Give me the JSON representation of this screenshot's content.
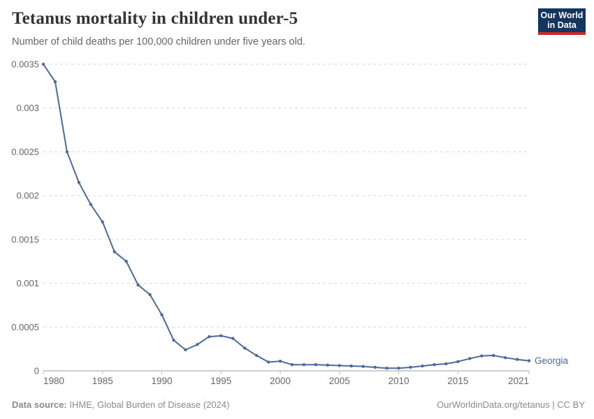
{
  "header": {
    "title": "Tetanus mortality in children under-5",
    "subtitle": "Number of child deaths per 100,000 children under five years old."
  },
  "logo": {
    "line1": "Our World",
    "line2": "in Data",
    "bg_color": "#14355E",
    "bar_color": "#CB2B24",
    "text_color": "#FFFFFF"
  },
  "chart_data": {
    "type": "line",
    "title": "Tetanus mortality in children under-5",
    "subtitle": "Number of child deaths per 100,000 children under five years old.",
    "xlabel": "",
    "ylabel": "",
    "x": [
      1980,
      1981,
      1982,
      1983,
      1984,
      1985,
      1986,
      1987,
      1988,
      1989,
      1990,
      1991,
      1992,
      1993,
      1994,
      1995,
      1996,
      1997,
      1998,
      1999,
      2000,
      2001,
      2002,
      2003,
      2004,
      2005,
      2006,
      2007,
      2008,
      2009,
      2010,
      2011,
      2012,
      2013,
      2014,
      2015,
      2016,
      2017,
      2018,
      2019,
      2020,
      2021
    ],
    "series": [
      {
        "name": "Georgia",
        "color": "#4C6A9C",
        "values": [
          0.0035,
          0.0033,
          0.0025,
          0.00215,
          0.0019,
          0.0017,
          0.00136,
          0.00125,
          0.00098,
          0.00087,
          0.00064,
          0.00035,
          0.00024,
          0.0003,
          0.00039,
          0.0004,
          0.00037,
          0.00026,
          0.000175,
          0.0001,
          0.00011,
          7e-05,
          7e-05,
          7e-05,
          6.5e-05,
          6e-05,
          5.5e-05,
          5e-05,
          4e-05,
          3e-05,
          3e-05,
          4e-05,
          5.5e-05,
          7e-05,
          8e-05,
          0.000105,
          0.00014,
          0.00017,
          0.000175,
          0.00015,
          0.00013,
          0.000115
        ]
      }
    ],
    "xlim": [
      1980,
      2021
    ],
    "ylim": [
      0,
      0.0035
    ],
    "yticks": {
      "values": [
        0,
        0.0005,
        0.001,
        0.0015,
        0.002,
        0.0025,
        0.003,
        0.0035
      ],
      "labels": [
        "0",
        "0.0005",
        "0.001",
        "0.0015",
        "0.002",
        "0.0025",
        "0.003",
        "0.0035"
      ]
    },
    "xticks": {
      "values": [
        1980,
        1985,
        1990,
        1995,
        2000,
        2005,
        2010,
        2015,
        2021
      ],
      "labels": [
        "1980",
        "1985",
        "1990",
        "1995",
        "2000",
        "2005",
        "2010",
        "2015",
        "2021"
      ]
    },
    "grid": "horizontal dashed",
    "legend": "end-of-line label",
    "colors": {
      "grid": "#DADADA",
      "axis": "#9E9E9E",
      "tick": "#BDBDBD",
      "tick_label": "#666666",
      "entity_label": "#4C6A9C"
    }
  },
  "footer": {
    "source_label": "Data source:",
    "source_text": "IHME, Global Burden of Disease (2024)",
    "credit": "OurWorldinData.org/tetanus | CC BY"
  }
}
